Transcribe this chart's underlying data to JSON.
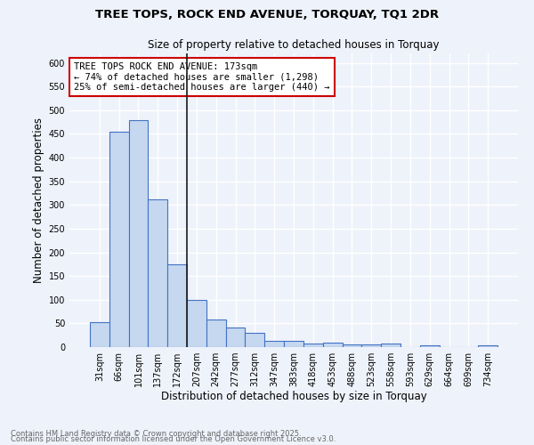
{
  "title1": "TREE TOPS, ROCK END AVENUE, TORQUAY, TQ1 2DR",
  "title2": "Size of property relative to detached houses in Torquay",
  "xlabel": "Distribution of detached houses by size in Torquay",
  "ylabel": "Number of detached properties",
  "categories": [
    "31sqm",
    "66sqm",
    "101sqm",
    "137sqm",
    "172sqm",
    "207sqm",
    "242sqm",
    "277sqm",
    "312sqm",
    "347sqm",
    "383sqm",
    "418sqm",
    "453sqm",
    "488sqm",
    "523sqm",
    "558sqm",
    "593sqm",
    "629sqm",
    "664sqm",
    "699sqm",
    "734sqm"
  ],
  "values": [
    52,
    455,
    480,
    312,
    175,
    100,
    58,
    42,
    30,
    14,
    14,
    8,
    10,
    5,
    5,
    7,
    0,
    4,
    0,
    0,
    4
  ],
  "bar_color": "#c5d8f0",
  "bar_edge_color": "#4472c4",
  "vline_x_index": 4,
  "vline_color": "#1a1a1a",
  "annotation_text": "TREE TOPS ROCK END AVENUE: 173sqm\n← 74% of detached houses are smaller (1,298)\n25% of semi-detached houses are larger (440) →",
  "annotation_box_color": "#ffffff",
  "annotation_box_edge": "#cc0000",
  "background_color": "#eef2fa",
  "grid_color": "#ffffff",
  "footer_line1": "Contains HM Land Registry data © Crown copyright and database right 2025.",
  "footer_line2": "Contains public sector information licensed under the Open Government Licence v3.0.",
  "ylim": [
    0,
    620
  ],
  "yticks": [
    0,
    50,
    100,
    150,
    200,
    250,
    300,
    350,
    400,
    450,
    500,
    550,
    600
  ]
}
